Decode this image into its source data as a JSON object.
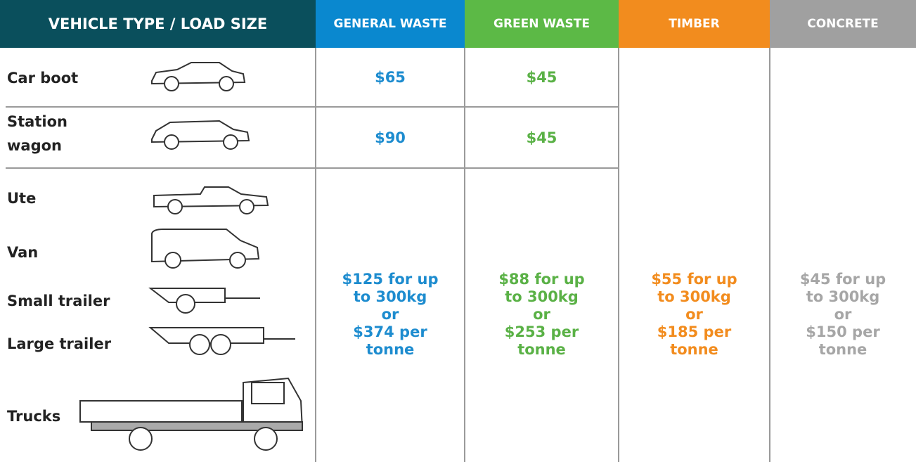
{
  "table": {
    "headers": [
      "VEHICLE TYPE / LOAD SIZE",
      "GENERAL WASTE",
      "GREEN WASTE",
      "TIMBER",
      "CONCRETE"
    ],
    "rows": [
      {
        "vehicle": "Car boot",
        "general": "$65",
        "green": "$45"
      },
      {
        "vehicle": "Station wagon",
        "general": "$90",
        "green": "$45"
      }
    ],
    "bulk_vehicles": [
      "Ute",
      "Van",
      "Small trailer",
      "Large trailer",
      "Trucks"
    ],
    "bulk_prices": {
      "general": [
        "$125 for up",
        "to 300kg",
        "or",
        "$374 per",
        "tonne"
      ],
      "green": [
        "$88 for up",
        "to 300kg",
        "or",
        "$253 per",
        "tonne"
      ],
      "timber": [
        "$55 for up",
        "to 300kg",
        "or",
        "$185 per",
        "tonne"
      ],
      "concrete": [
        "$45 for up",
        "to 300kg",
        "or",
        "$150 per",
        "tonne"
      ]
    }
  }
}
